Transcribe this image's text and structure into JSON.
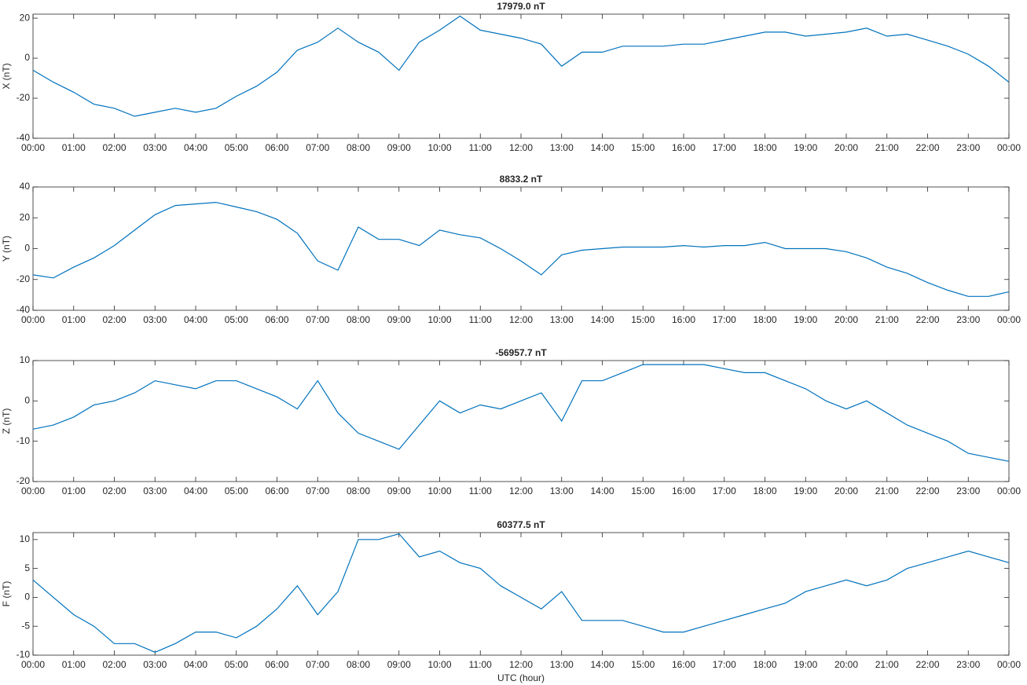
{
  "chart_data": [
    {
      "type": "line",
      "title": "17979.0 nT",
      "y_label": "X (nT)",
      "color": "#0072bd",
      "x": [
        0,
        0.5,
        1,
        1.5,
        2,
        2.5,
        3,
        3.5,
        4,
        4.5,
        5,
        5.5,
        6,
        6.5,
        7,
        7.5,
        8,
        8.5,
        9,
        9.5,
        10,
        10.5,
        11,
        11.5,
        12,
        12.5,
        13,
        13.5,
        14,
        14.5,
        15,
        15.5,
        16,
        16.5,
        17,
        17.5,
        18,
        18.5,
        19,
        19.5,
        20,
        20.5,
        21,
        21.5,
        22,
        22.5,
        23,
        23.5,
        24
      ],
      "series": [
        {
          "name": "X",
          "color": "#0072bd",
          "values": [
            -6,
            -12,
            -17,
            -23,
            -25,
            -29,
            -27,
            -25,
            -27,
            -25,
            -19,
            -14,
            -7,
            4,
            8,
            15,
            8,
            3,
            -6,
            8,
            14,
            21,
            14,
            12,
            10,
            7,
            -4,
            3,
            3,
            6,
            6,
            6,
            7,
            7,
            9,
            11,
            13,
            13,
            11,
            12,
            13,
            15,
            11,
            12,
            9,
            6,
            2,
            -4,
            -12
          ]
        }
      ],
      "xlim": [
        0,
        24
      ],
      "xticks": [
        {
          "value": 0,
          "label": "00:00"
        },
        {
          "value": 1,
          "label": "01:00"
        },
        {
          "value": 2,
          "label": "02:00"
        },
        {
          "value": 3,
          "label": "03:00"
        },
        {
          "value": 4,
          "label": "04:00"
        },
        {
          "value": 5,
          "label": "05:00"
        },
        {
          "value": 6,
          "label": "06:00"
        },
        {
          "value": 7,
          "label": "07:00"
        },
        {
          "value": 8,
          "label": "08:00"
        },
        {
          "value": 9,
          "label": "09:00"
        },
        {
          "value": 10,
          "label": "10:00"
        },
        {
          "value": 11,
          "label": "11:00"
        },
        {
          "value": 12,
          "label": "12:00"
        },
        {
          "value": 13,
          "label": "13:00"
        },
        {
          "value": 14,
          "label": "14:00"
        },
        {
          "value": 15,
          "label": "15:00"
        },
        {
          "value": 16,
          "label": "16:00"
        },
        {
          "value": 17,
          "label": "17:00"
        },
        {
          "value": 18,
          "label": "18:00"
        },
        {
          "value": 19,
          "label": "19:00"
        },
        {
          "value": 20,
          "label": "20:00"
        },
        {
          "value": 21,
          "label": "21:00"
        },
        {
          "value": 22,
          "label": "22:00"
        },
        {
          "value": 23,
          "label": "23:00"
        },
        {
          "value": 24,
          "label": "00:00"
        }
      ],
      "ylim": [
        -40,
        22
      ],
      "yticks": [
        -40,
        -20,
        0,
        20
      ],
      "grid": false
    },
    {
      "type": "line",
      "title": "8833.2 nT",
      "y_label": "Y (nT)",
      "color": "#0072bd",
      "x": [
        0,
        0.5,
        1,
        1.5,
        2,
        2.5,
        3,
        3.5,
        4,
        4.5,
        5,
        5.5,
        6,
        6.5,
        7,
        7.5,
        8,
        8.5,
        9,
        9.5,
        10,
        10.5,
        11,
        11.5,
        12,
        12.5,
        13,
        13.5,
        14,
        14.5,
        15,
        15.5,
        16,
        16.5,
        17,
        17.5,
        18,
        18.5,
        19,
        19.5,
        20,
        20.5,
        21,
        21.5,
        22,
        22.5,
        23,
        23.5,
        24
      ],
      "series": [
        {
          "name": "Y",
          "color": "#0072bd",
          "values": [
            -17,
            -19,
            -12,
            -6,
            2,
            12,
            22,
            28,
            29,
            30,
            27,
            24,
            19,
            10,
            -8,
            -14,
            14,
            6,
            6,
            2,
            12,
            9,
            7,
            0,
            -8,
            -17,
            -4,
            -1,
            0,
            1,
            1,
            1,
            2,
            1,
            2,
            2,
            4,
            0,
            0,
            0,
            -2,
            -6,
            -12,
            -16,
            -22,
            -27,
            -31,
            -31,
            -28
          ]
        }
      ],
      "xlim": [
        0,
        24
      ],
      "xticks": [
        {
          "value": 0,
          "label": "00:00"
        },
        {
          "value": 1,
          "label": "01:00"
        },
        {
          "value": 2,
          "label": "02:00"
        },
        {
          "value": 3,
          "label": "03:00"
        },
        {
          "value": 4,
          "label": "04:00"
        },
        {
          "value": 5,
          "label": "05:00"
        },
        {
          "value": 6,
          "label": "06:00"
        },
        {
          "value": 7,
          "label": "07:00"
        },
        {
          "value": 8,
          "label": "08:00"
        },
        {
          "value": 9,
          "label": "09:00"
        },
        {
          "value": 10,
          "label": "10:00"
        },
        {
          "value": 11,
          "label": "11:00"
        },
        {
          "value": 12,
          "label": "12:00"
        },
        {
          "value": 13,
          "label": "13:00"
        },
        {
          "value": 14,
          "label": "14:00"
        },
        {
          "value": 15,
          "label": "15:00"
        },
        {
          "value": 16,
          "label": "16:00"
        },
        {
          "value": 17,
          "label": "17:00"
        },
        {
          "value": 18,
          "label": "18:00"
        },
        {
          "value": 19,
          "label": "19:00"
        },
        {
          "value": 20,
          "label": "20:00"
        },
        {
          "value": 21,
          "label": "21:00"
        },
        {
          "value": 22,
          "label": "22:00"
        },
        {
          "value": 23,
          "label": "23:00"
        },
        {
          "value": 24,
          "label": "00:00"
        }
      ],
      "ylim": [
        -40,
        40
      ],
      "yticks": [
        -40,
        -20,
        0,
        20,
        40
      ],
      "grid": false
    },
    {
      "type": "line",
      "title": "-56957.7 nT",
      "y_label": "Z (nT)",
      "color": "#0072bd",
      "x": [
        0,
        0.5,
        1,
        1.5,
        2,
        2.5,
        3,
        3.5,
        4,
        4.5,
        5,
        5.5,
        6,
        6.5,
        7,
        7.5,
        8,
        8.5,
        9,
        9.5,
        10,
        10.5,
        11,
        11.5,
        12,
        12.5,
        13,
        13.5,
        14,
        14.5,
        15,
        15.5,
        16,
        16.5,
        17,
        17.5,
        18,
        18.5,
        19,
        19.5,
        20,
        20.5,
        21,
        21.5,
        22,
        22.5,
        23,
        23.5,
        24
      ],
      "series": [
        {
          "name": "Z",
          "color": "#0072bd",
          "values": [
            -7,
            -6,
            -4,
            -1,
            0,
            2,
            5,
            4,
            3,
            5,
            5,
            3,
            1,
            -2,
            5,
            -3,
            -8,
            -10,
            -12,
            -6,
            0,
            -3,
            -1,
            -2,
            0,
            2,
            -5,
            5,
            5,
            7,
            9,
            9,
            9,
            9,
            8,
            7,
            7,
            5,
            3,
            0,
            -2,
            0,
            -3,
            -6,
            -8,
            -10,
            -13,
            -14,
            -15
          ]
        }
      ],
      "xlim": [
        0,
        24
      ],
      "xticks": [
        {
          "value": 0,
          "label": "00:00"
        },
        {
          "value": 1,
          "label": "01:00"
        },
        {
          "value": 2,
          "label": "02:00"
        },
        {
          "value": 3,
          "label": "03:00"
        },
        {
          "value": 4,
          "label": "04:00"
        },
        {
          "value": 5,
          "label": "05:00"
        },
        {
          "value": 6,
          "label": "06:00"
        },
        {
          "value": 7,
          "label": "07:00"
        },
        {
          "value": 8,
          "label": "08:00"
        },
        {
          "value": 9,
          "label": "09:00"
        },
        {
          "value": 10,
          "label": "10:00"
        },
        {
          "value": 11,
          "label": "11:00"
        },
        {
          "value": 12,
          "label": "12:00"
        },
        {
          "value": 13,
          "label": "13:00"
        },
        {
          "value": 14,
          "label": "14:00"
        },
        {
          "value": 15,
          "label": "15:00"
        },
        {
          "value": 16,
          "label": "16:00"
        },
        {
          "value": 17,
          "label": "17:00"
        },
        {
          "value": 18,
          "label": "18:00"
        },
        {
          "value": 19,
          "label": "19:00"
        },
        {
          "value": 20,
          "label": "20:00"
        },
        {
          "value": 21,
          "label": "21:00"
        },
        {
          "value": 22,
          "label": "22:00"
        },
        {
          "value": 23,
          "label": "23:00"
        },
        {
          "value": 24,
          "label": "00:00"
        }
      ],
      "ylim": [
        -20,
        10
      ],
      "yticks": [
        -20,
        -10,
        0,
        10
      ],
      "grid": false
    },
    {
      "type": "line",
      "title": "60377.5 nT",
      "y_label": "F (nT)",
      "x_label": "UTC (hour)",
      "color": "#0072bd",
      "x": [
        0,
        0.5,
        1,
        1.5,
        2,
        2.5,
        3,
        3.5,
        4,
        4.5,
        5,
        5.5,
        6,
        6.5,
        7,
        7.5,
        8,
        8.5,
        9,
        9.5,
        10,
        10.5,
        11,
        11.5,
        12,
        12.5,
        13,
        13.5,
        14,
        14.5,
        15,
        15.5,
        16,
        16.5,
        17,
        17.5,
        18,
        18.5,
        19,
        19.5,
        20,
        20.5,
        21,
        21.5,
        22,
        22.5,
        23,
        23.5,
        24
      ],
      "series": [
        {
          "name": "F",
          "color": "#0072bd",
          "values": [
            3,
            0,
            -3,
            -5,
            -8,
            -8,
            -9.5,
            -8,
            -6,
            -6,
            -7,
            -5,
            -2,
            2,
            -3,
            1,
            10,
            10,
            11,
            7,
            8,
            6,
            5,
            2,
            0,
            -2,
            1,
            -4,
            -4,
            -4,
            -5,
            -6,
            -6,
            -5,
            -4,
            -3,
            -2,
            -1,
            1,
            2,
            3,
            2,
            3,
            5,
            6,
            7,
            8,
            7,
            6
          ]
        }
      ],
      "xlim": [
        0,
        24
      ],
      "xticks": [
        {
          "value": 0,
          "label": "00:00"
        },
        {
          "value": 1,
          "label": "01:00"
        },
        {
          "value": 2,
          "label": "02:00"
        },
        {
          "value": 3,
          "label": "03:00"
        },
        {
          "value": 4,
          "label": "04:00"
        },
        {
          "value": 5,
          "label": "05:00"
        },
        {
          "value": 6,
          "label": "06:00"
        },
        {
          "value": 7,
          "label": "07:00"
        },
        {
          "value": 8,
          "label": "08:00"
        },
        {
          "value": 9,
          "label": "09:00"
        },
        {
          "value": 10,
          "label": "10:00"
        },
        {
          "value": 11,
          "label": "11:00"
        },
        {
          "value": 12,
          "label": "12:00"
        },
        {
          "value": 13,
          "label": "13:00"
        },
        {
          "value": 14,
          "label": "14:00"
        },
        {
          "value": 15,
          "label": "15:00"
        },
        {
          "value": 16,
          "label": "16:00"
        },
        {
          "value": 17,
          "label": "17:00"
        },
        {
          "value": 18,
          "label": "18:00"
        },
        {
          "value": 19,
          "label": "19:00"
        },
        {
          "value": 20,
          "label": "20:00"
        },
        {
          "value": 21,
          "label": "21:00"
        },
        {
          "value": 22,
          "label": "22:00"
        },
        {
          "value": 23,
          "label": "23:00"
        },
        {
          "value": 24,
          "label": "00:00"
        }
      ],
      "ylim": [
        -10,
        11.2
      ],
      "yticks": [
        -10,
        -5,
        0,
        5,
        10
      ],
      "grid": false
    }
  ]
}
